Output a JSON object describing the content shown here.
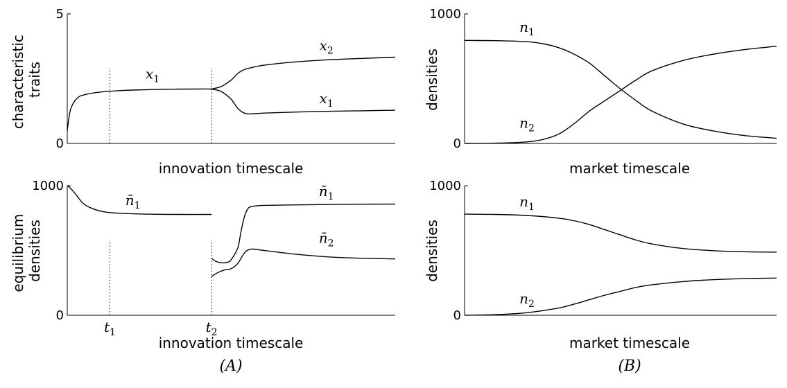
{
  "panel_labels": {
    "A": "(A)",
    "B": "(B)"
  },
  "chart_data": [
    {
      "type": "line",
      "ylabel_lines": [
        "characteristic",
        "traits"
      ],
      "xlabel": "innovation timescale",
      "ylim": [
        0,
        5
      ],
      "yticks": [
        "0",
        "5"
      ],
      "grid": false,
      "series": [
        {
          "name": "x1",
          "x": [
            0,
            0.01,
            0.03,
            0.06,
            0.1,
            0.15,
            0.2,
            0.3,
            0.4,
            0.44
          ],
          "y": [
            0.5,
            1.3,
            1.75,
            1.9,
            1.98,
            2.03,
            2.06,
            2.09,
            2.1,
            2.1
          ]
        },
        {
          "name": "x1",
          "x": [
            0.44,
            0.47,
            0.5,
            0.52,
            0.54,
            0.56,
            0.6,
            0.7,
            0.8,
            0.9,
            1.0
          ],
          "y": [
            2.1,
            2.0,
            1.7,
            1.35,
            1.17,
            1.14,
            1.17,
            1.21,
            1.24,
            1.26,
            1.28
          ]
        },
        {
          "name": "x2",
          "x": [
            0.44,
            0.47,
            0.5,
            0.52,
            0.54,
            0.56,
            0.6,
            0.7,
            0.8,
            0.9,
            1.0
          ],
          "y": [
            2.1,
            2.2,
            2.45,
            2.7,
            2.85,
            2.92,
            3.02,
            3.15,
            3.23,
            3.28,
            3.33
          ]
        }
      ],
      "annotations": [
        {
          "base": "x",
          "sub": "1",
          "x": 0.26,
          "y": 2.5
        },
        {
          "base": "x",
          "sub": "2",
          "x": 0.79,
          "y": 3.6
        },
        {
          "base": "x",
          "sub": "1",
          "x": 0.79,
          "y": 1.55
        }
      ],
      "vlines": [
        0.13,
        0.44
      ]
    },
    {
      "type": "line",
      "ylabel_lines": [
        "equilibrium",
        "densities"
      ],
      "xlabel": "innovation timescale",
      "ylim": [
        0,
        1000
      ],
      "yticks": [
        "0",
        "1000"
      ],
      "grid": false,
      "series": [
        {
          "name": "n̄1",
          "x": [
            0,
            0.01,
            0.03,
            0.05,
            0.08,
            0.12,
            0.18,
            0.25,
            0.35,
            0.44
          ],
          "y": [
            1000,
            980,
            920,
            860,
            820,
            795,
            785,
            780,
            778,
            778
          ]
        },
        {
          "name": "n̄1",
          "x": [
            0.44,
            0.45,
            0.47,
            0.49,
            0.5,
            0.52,
            0.53,
            0.54,
            0.55,
            0.56,
            0.58,
            0.6,
            0.7,
            0.8,
            0.9,
            1.0
          ],
          "y": [
            440,
            420,
            405,
            410,
            430,
            520,
            650,
            760,
            820,
            838,
            845,
            848,
            852,
            855,
            857,
            858
          ]
        },
        {
          "name": "n̄2",
          "x": [
            0.44,
            0.46,
            0.48,
            0.5,
            0.52,
            0.54,
            0.56,
            0.6,
            0.7,
            0.8,
            0.9,
            1.0
          ],
          "y": [
            300,
            330,
            350,
            360,
            400,
            480,
            510,
            500,
            470,
            450,
            440,
            435
          ]
        }
      ],
      "annotations": [
        {
          "base": "n̄",
          "sub": "1",
          "x": 0.2,
          "y": 850
        },
        {
          "base": "n̄",
          "sub": "1",
          "x": 0.79,
          "y": 920
        },
        {
          "base": "n̄",
          "sub": "2",
          "x": 0.79,
          "y": 560
        }
      ],
      "vlines": [
        0.13,
        0.44
      ],
      "xticklabels": [
        {
          "base": "t",
          "sub": "1",
          "x": 0.13
        },
        {
          "base": "t",
          "sub": "2",
          "x": 0.44
        }
      ]
    },
    {
      "type": "line",
      "ylabel": "densities",
      "xlabel": "market timescale",
      "ylim": [
        0,
        1000
      ],
      "yticks": [
        "0",
        "1000"
      ],
      "grid": false,
      "series": [
        {
          "name": "n1",
          "x": [
            0,
            0.1,
            0.2,
            0.25,
            0.3,
            0.35,
            0.4,
            0.45,
            0.5,
            0.55,
            0.6,
            0.7,
            0.8,
            0.9,
            1.0
          ],
          "y": [
            795,
            793,
            785,
            770,
            740,
            690,
            620,
            520,
            420,
            330,
            250,
            150,
            95,
            60,
            40
          ]
        },
        {
          "name": "n2",
          "x": [
            0,
            0.1,
            0.2,
            0.25,
            0.3,
            0.35,
            0.4,
            0.45,
            0.5,
            0.55,
            0.6,
            0.7,
            0.8,
            0.9,
            1.0
          ],
          "y": [
            0,
            2,
            12,
            30,
            70,
            150,
            250,
            330,
            410,
            490,
            560,
            640,
            690,
            725,
            750
          ]
        }
      ],
      "annotations": [
        {
          "base": "n",
          "sub": "1",
          "x": 0.2,
          "y": 860
        },
        {
          "base": "n",
          "sub": "2",
          "x": 0.2,
          "y": 120
        }
      ]
    },
    {
      "type": "line",
      "ylabel": "densities",
      "xlabel": "market timescale",
      "ylim": [
        0,
        1000
      ],
      "yticks": [
        "0",
        "1000"
      ],
      "grid": false,
      "series": [
        {
          "name": "n1",
          "x": [
            0,
            0.1,
            0.2,
            0.3,
            0.35,
            0.4,
            0.45,
            0.5,
            0.55,
            0.6,
            0.7,
            0.8,
            0.9,
            1.0
          ],
          "y": [
            780,
            778,
            770,
            750,
            730,
            700,
            660,
            620,
            580,
            550,
            515,
            498,
            490,
            487
          ]
        },
        {
          "name": "n2",
          "x": [
            0,
            0.1,
            0.2,
            0.3,
            0.35,
            0.4,
            0.45,
            0.5,
            0.55,
            0.6,
            0.7,
            0.8,
            0.9,
            1.0
          ],
          "y": [
            0,
            5,
            20,
            55,
            85,
            120,
            155,
            185,
            215,
            235,
            260,
            275,
            283,
            287
          ]
        }
      ],
      "annotations": [
        {
          "base": "n",
          "sub": "1",
          "x": 0.2,
          "y": 840
        },
        {
          "base": "n",
          "sub": "2",
          "x": 0.2,
          "y": 90
        }
      ]
    }
  ]
}
